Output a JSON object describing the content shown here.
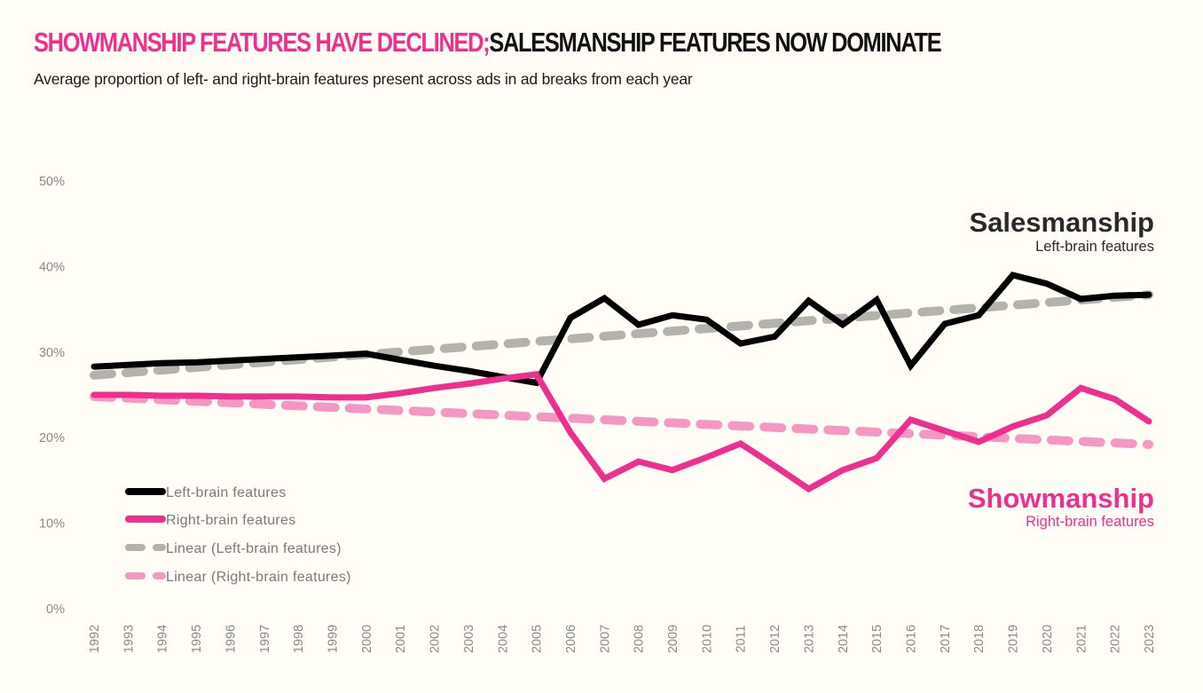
{
  "header": {
    "title_part1": "SHOWMANSHIP FEATURES HAVE DECLINED;",
    "title_part2": "SALESMANSHIP FEATURES NOW DOMINATE",
    "subtitle": "Average proportion of left- and right-brain features present across ads in ad breaks from each year"
  },
  "colors": {
    "background": "#fffdf6",
    "left_brain": "#000000",
    "right_brain": "#ee2f8f",
    "left_trend": "#b3b2ad",
    "right_trend": "#f497c2",
    "axis_text": "#8a8a8a"
  },
  "annotations": {
    "salesmanship_title": "Salesmanship",
    "salesmanship_sub": "Left-brain features",
    "showmanship_title": "Showmanship",
    "showmanship_sub": "Right-brain features"
  },
  "chart_data": {
    "type": "line",
    "title": "SHOWMANSHIP FEATURES HAVE DECLINED; SALESMANSHIP FEATURES NOW DOMINATE",
    "subtitle": "Average proportion of left- and right-brain features present across ads in ad breaks from each year",
    "xlabel": "",
    "ylabel": "",
    "ylim": [
      0,
      50
    ],
    "yticks": [
      0,
      10,
      20,
      30,
      40,
      50
    ],
    "ytick_labels": [
      "0%",
      "10%",
      "20%",
      "30%",
      "40%",
      "50%"
    ],
    "grid": false,
    "legend_position": "bottom-left",
    "x": [
      "1992",
      "1993",
      "1994",
      "1995",
      "1996",
      "1997",
      "1998",
      "1999",
      "2000",
      "2001",
      "2002",
      "2003",
      "2004",
      "2005",
      "2006",
      "2007",
      "2008",
      "2009",
      "2010",
      "2011",
      "2012",
      "2013",
      "2014",
      "2015",
      "2016",
      "2017",
      "2018",
      "2019",
      "2020",
      "2021",
      "2022",
      "2023"
    ],
    "series": [
      {
        "name": "Left-brain features",
        "style": "solid",
        "color": "#000000",
        "values": [
          28.3,
          28.5,
          28.7,
          28.8,
          29.0,
          29.2,
          29.4,
          29.6,
          29.8,
          29.1,
          28.4,
          27.8,
          27.1,
          26.4,
          34.0,
          36.3,
          33.2,
          34.3,
          33.8,
          31.0,
          31.8,
          36.0,
          33.2,
          36.1,
          28.4,
          33.3,
          34.3,
          39.0,
          38.0,
          36.2,
          36.6,
          36.7
        ]
      },
      {
        "name": "Right-brain features",
        "style": "solid",
        "color": "#ee2f8f",
        "values": [
          25.0,
          25.0,
          24.9,
          24.9,
          24.8,
          24.8,
          24.8,
          24.7,
          24.7,
          25.2,
          25.8,
          26.3,
          26.9,
          27.4,
          20.6,
          15.2,
          17.2,
          16.2,
          17.7,
          19.3,
          16.7,
          14.0,
          16.2,
          17.6,
          22.1,
          20.8,
          19.5,
          21.3,
          22.6,
          25.8,
          24.5,
          21.9
        ]
      },
      {
        "name": "Linear (Left-brain features)",
        "style": "dashed",
        "color": "#b3b2ad",
        "values": [
          27.3,
          36.7
        ],
        "trend_endpoints": [
          "1992",
          "2023"
        ]
      },
      {
        "name": "Linear (Right-brain features)",
        "style": "dashed",
        "color": "#f497c2",
        "values": [
          24.8,
          19.2
        ],
        "trend_endpoints": [
          "1992",
          "2023"
        ]
      }
    ],
    "legend": [
      "Left-brain features",
      "Right-brain features",
      "Linear (Left-brain features)",
      "Linear (Right-brain features)"
    ]
  }
}
